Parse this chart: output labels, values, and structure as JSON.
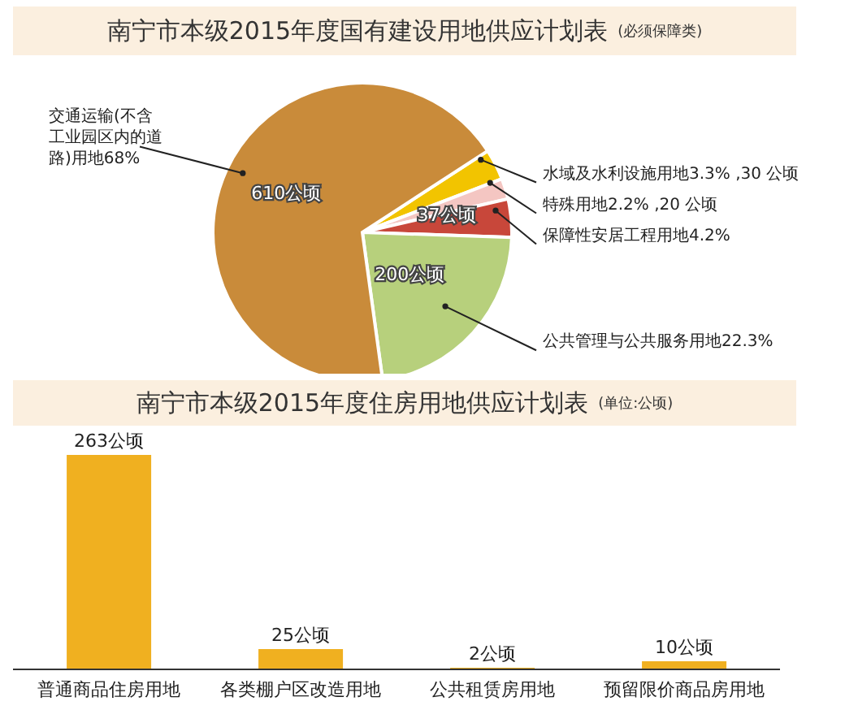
{
  "chart_data": [
    {
      "type": "pie",
      "title": "南宁市本级2015年度国有建设用地供应计划表",
      "subtitle": "(必须保障类)",
      "categories": [
        "水域及水利设施用地3.3% ,30 公顷",
        "特殊用地2.2% ,20 公顷",
        "保障性安居工程用地4.2%",
        "公共管理与公共服务用地22.3%",
        "交通运输(不含工业园区内的道路)用地68%"
      ],
      "values": [
        30,
        20,
        37,
        200,
        610
      ],
      "colors": [
        "#f2c400",
        "#f4c6c2",
        "#c8473a",
        "#b7d07c",
        "#c98b3a"
      ],
      "value_labels": [
        null,
        null,
        "37公顷",
        "200公顷",
        "610公顷"
      ]
    },
    {
      "type": "bar",
      "title": "南宁市本级2015年度住房用地供应计划表",
      "subtitle": "(单位:公顷)",
      "categories": [
        "普通商品住房用地",
        "各类棚户区改造用地",
        "公共租赁房用地",
        "预留限价商品房用地"
      ],
      "values": [
        263,
        25,
        2,
        10
      ],
      "color": "#f0b020",
      "value_labels": [
        "263公顷",
        "25公顷",
        "2公顷",
        "10公顷"
      ],
      "tick_labels": "x"
    }
  ]
}
